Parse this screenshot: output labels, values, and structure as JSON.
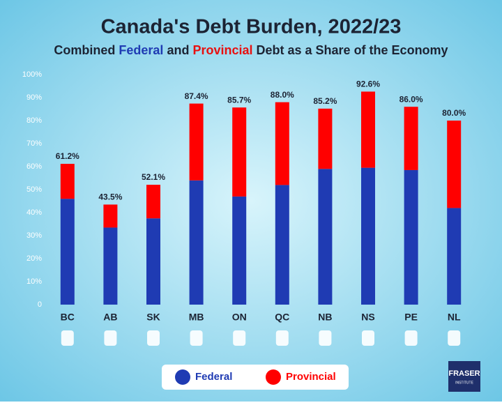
{
  "chart_data": {
    "type": "stacked_bar",
    "title": "Canada's Debt Burden, 2022/23",
    "subtitle": [
      "Combined ",
      "Federal",
      " and ",
      "Provincial",
      " Debt as a Share of the Economy"
    ],
    "categories": [
      "BC",
      "AB",
      "SK",
      "MB",
      "ON",
      "QC",
      "NB",
      "NS",
      "PE",
      "NL"
    ],
    "series": [
      {
        "name": "Federal",
        "color": "#1f3bb3",
        "values": [
          46,
          33.5,
          37.5,
          54,
          47,
          52,
          59,
          59.5,
          58.5,
          42
        ]
      },
      {
        "name": "Provincial",
        "color": "#ff0000",
        "values": [
          15.2,
          10.0,
          14.6,
          33.4,
          38.7,
          36.0,
          26.2,
          33.1,
          27.5,
          38.0
        ]
      }
    ],
    "totals": [
      61.2,
      43.5,
      52.1,
      87.4,
      85.7,
      88.0,
      85.2,
      92.6,
      86.0,
      80.0
    ],
    "total_labels": [
      "61.2%",
      "43.5%",
      "52.1%",
      "87.4%",
      "85.7%",
      "88.0%",
      "85.2%",
      "92.6%",
      "86.0%",
      "80.0%"
    ],
    "ylim": [
      0,
      100
    ],
    "yticks": [
      0,
      {
        "value": 10,
        "label": "10%"
      },
      {
        "value": 20,
        "label": "20%"
      },
      {
        "value": 30,
        "label": "30%"
      },
      {
        "value": 40,
        "label": "40%"
      },
      {
        "value": 50,
        "label": "50%"
      },
      {
        "value": 60,
        "label": "60%"
      },
      {
        "value": 70,
        "label": "70%"
      },
      {
        "value": 80,
        "label": "80%"
      },
      {
        "value": 90,
        "label": "90%"
      },
      {
        "value": 100,
        "label": "100%"
      }
    ],
    "logo": [
      "FRASER",
      "INSTITUTE"
    ]
  }
}
